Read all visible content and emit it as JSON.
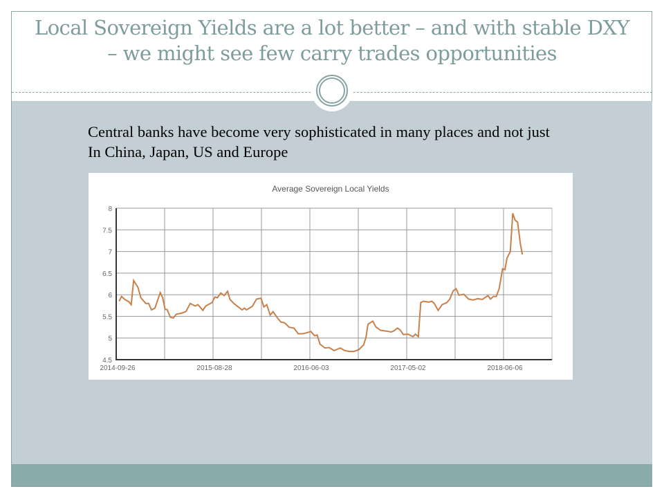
{
  "slide": {
    "title_line1": "Local Sovereign Yields are a lot better – and with stable DXY",
    "title_line2": "– we might see few carry trades opportunities",
    "body_line1": "Central banks have become very sophisticated in many places and not just",
    "body_line2": "In China, Japan, US and Europe"
  },
  "colors": {
    "title": "#7f9c9c",
    "body_bg": "#c4cfd5",
    "footer": "#8aabab",
    "line": "#c8804a"
  },
  "chart_data": {
    "type": "line",
    "title": "Average Sovereign Local Yields",
    "xlabel": "",
    "ylabel": "",
    "ylim": [
      4.5,
      8
    ],
    "yticks": [
      "4.5",
      "5",
      "5.5",
      "6",
      "6.5",
      "7",
      "7.5",
      "8"
    ],
    "xlim": [
      0,
      90
    ],
    "xtick_labels": [
      {
        "x": 0,
        "label": "2014-09-26"
      },
      {
        "x": 20,
        "label": "2015-08-28"
      },
      {
        "x": 40,
        "label": "2016-06-03"
      },
      {
        "x": 60,
        "label": "2017-05-02"
      },
      {
        "x": 80,
        "label": "2018-06-06"
      }
    ],
    "grid": true,
    "series": [
      {
        "name": "Average Sovereign Local Yields",
        "x": [
          0.6,
          1.1,
          1.8,
          2.6,
          3.1,
          3.6,
          4.5,
          5.1,
          6.1,
          6.7,
          7.3,
          8.0,
          9.1,
          9.6,
          10.1,
          10.5,
          11.2,
          11.8,
          12.4,
          13.4,
          14.4,
          15.3,
          16.3,
          16.9,
          17.9,
          18.5,
          19.8,
          20.4,
          20.9,
          21.6,
          22.3,
          23.0,
          23.5,
          24.3,
          25.2,
          26.0,
          26.5,
          26.9,
          28.1,
          29.0,
          29.9,
          30.5,
          31.1,
          31.8,
          32.4,
          33.2,
          34.0,
          34.8,
          35.7,
          36.7,
          37.6,
          38.6,
          39.6,
          40.2,
          41.0,
          41.5,
          42.1,
          43.1,
          44.0,
          45.0,
          46.3,
          47.2,
          48.2,
          49.1,
          50.1,
          51.1,
          51.6,
          52.0,
          53.0,
          53.6,
          54.6,
          55.8,
          56.8,
          57.4,
          58.1,
          58.7,
          59.3,
          60.3,
          61.3,
          61.8,
          62.4,
          62.9,
          63.5,
          64.5,
          65.2,
          65.7,
          66.5,
          67.3,
          68.3,
          68.9,
          69.6,
          70.2,
          70.8,
          71.8,
          72.8,
          73.7,
          74.7,
          75.6,
          76.8,
          77.3,
          77.9,
          78.5,
          79.1,
          79.8,
          80.3,
          80.7,
          81.4,
          81.9,
          82.4,
          82.9,
          83.5,
          83.9
        ],
        "values": [
          5.85,
          5.96,
          5.89,
          5.84,
          5.77,
          6.33,
          6.17,
          5.93,
          5.8,
          5.8,
          5.65,
          5.69,
          6.05,
          5.93,
          5.66,
          5.66,
          5.48,
          5.46,
          5.55,
          5.57,
          5.61,
          5.8,
          5.74,
          5.77,
          5.64,
          5.74,
          5.82,
          5.95,
          5.93,
          6.04,
          5.98,
          6.08,
          5.89,
          5.8,
          5.72,
          5.65,
          5.69,
          5.65,
          5.73,
          5.9,
          5.92,
          5.72,
          5.77,
          5.53,
          5.61,
          5.48,
          5.37,
          5.35,
          5.25,
          5.23,
          5.1,
          5.1,
          5.13,
          5.15,
          5.05,
          5.07,
          4.86,
          4.77,
          4.78,
          4.71,
          4.77,
          4.71,
          4.69,
          4.69,
          4.73,
          4.84,
          5.02,
          5.32,
          5.39,
          5.26,
          5.18,
          5.16,
          5.14,
          5.17,
          5.23,
          5.18,
          5.08,
          5.09,
          5.03,
          5.09,
          5.03,
          5.82,
          5.85,
          5.83,
          5.85,
          5.8,
          5.64,
          5.77,
          5.82,
          5.9,
          6.09,
          6.14,
          5.99,
          6.01,
          5.9,
          5.88,
          5.91,
          5.89,
          5.98,
          5.9,
          5.96,
          5.96,
          6.14,
          6.6,
          6.58,
          6.84,
          7.0,
          7.88,
          7.72,
          7.68,
          7.16,
          6.93
        ]
      }
    ]
  }
}
